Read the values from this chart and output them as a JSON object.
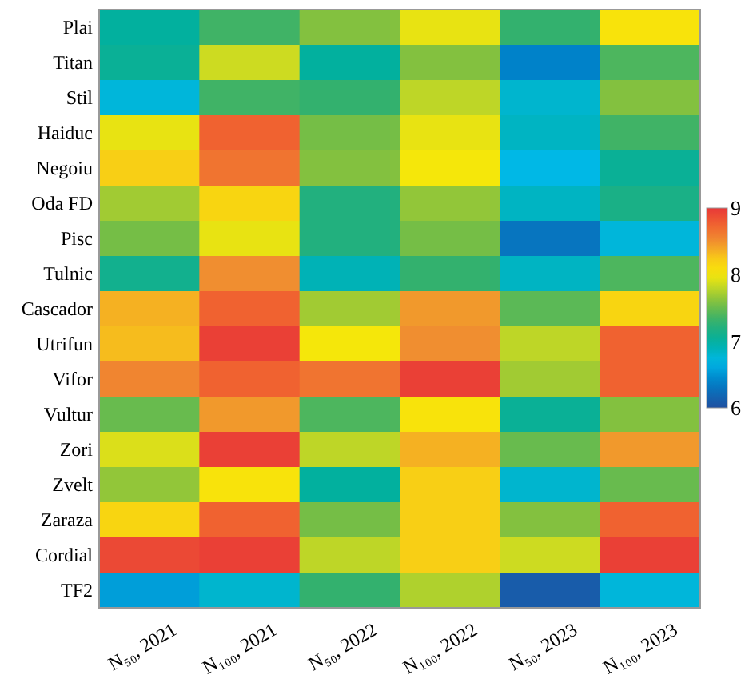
{
  "chart_data": {
    "type": "heatmap",
    "categories": [
      "N₅₀, 2021",
      "N₁₀₀, 2021",
      "N₅₀, 2022",
      "N₁₀₀, 2022",
      "N₅₀, 2023",
      "N₁₀₀, 2023"
    ],
    "y_categories": [
      "Plai",
      "Titan",
      "Stil",
      "Haiduc",
      "Negoiu",
      "Oda FD",
      "Pisc",
      "Tulnic",
      "Cascador",
      "Utrifun",
      "Vifor",
      "Vultur",
      "Zori",
      "Zvelt",
      "Zaraza",
      "Cordial",
      "TF2"
    ],
    "cells": [
      [
        7.0,
        7.35,
        7.6,
        7.95,
        7.3,
        8.05
      ],
      [
        7.05,
        7.85,
        7.0,
        7.6,
        6.4,
        7.4
      ],
      [
        6.75,
        7.35,
        7.3,
        7.8,
        6.8,
        7.6
      ],
      [
        7.95,
        8.75,
        7.55,
        7.95,
        6.85,
        7.35
      ],
      [
        8.2,
        8.65,
        7.6,
        8.0,
        6.7,
        7.05
      ],
      [
        7.7,
        8.15,
        7.2,
        7.65,
        6.85,
        7.15
      ],
      [
        7.55,
        7.95,
        7.2,
        7.55,
        6.3,
        6.75
      ],
      [
        7.1,
        8.5,
        6.9,
        7.3,
        6.85,
        7.4
      ],
      [
        8.35,
        8.75,
        7.7,
        8.45,
        7.45,
        8.15
      ],
      [
        8.3,
        8.95,
        8.0,
        8.5,
        7.8,
        8.75
      ],
      [
        8.55,
        8.75,
        8.65,
        8.95,
        7.7,
        8.75
      ],
      [
        7.5,
        8.45,
        7.4,
        8.05,
        7.05,
        7.6
      ],
      [
        7.9,
        8.95,
        7.8,
        8.35,
        7.5,
        8.45
      ],
      [
        7.65,
        8.05,
        7.0,
        8.2,
        6.8,
        7.5
      ],
      [
        8.15,
        8.75,
        7.55,
        8.2,
        7.6,
        8.75
      ],
      [
        8.9,
        8.95,
        7.8,
        8.2,
        7.85,
        8.95
      ],
      [
        6.55,
        6.8,
        7.3,
        7.75,
        6.1,
        6.75
      ]
    ],
    "clim": [
      6,
      9
    ],
    "cticks": [
      6,
      7,
      8,
      9
    ]
  }
}
